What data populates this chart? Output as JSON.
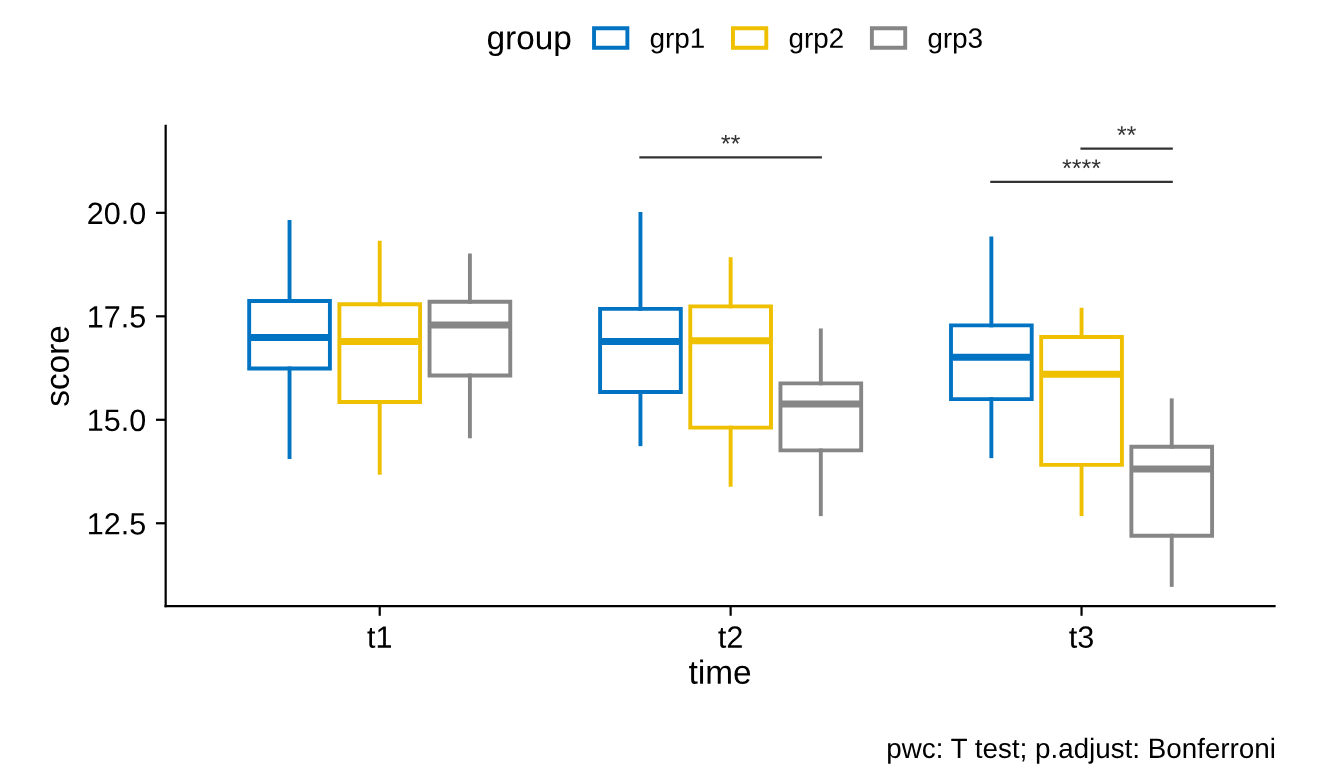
{
  "chart_data": {
    "type": "box",
    "xlabel": "time",
    "ylabel": "score",
    "legend_title": "group",
    "legend": "top",
    "categories": [
      "t1",
      "t2",
      "t3"
    ],
    "ylim": [
      10.5,
      22.1
    ],
    "yticks": [
      {
        "value": 12.5,
        "label": "12.5"
      },
      {
        "value": 15,
        "label": "15.0"
      },
      {
        "value": 17.5,
        "label": "17.5"
      },
      {
        "value": 20,
        "label": "20.0"
      }
    ],
    "grid": false,
    "series": [
      {
        "name": "grp1",
        "color": "#0073c2",
        "boxes": [
          {
            "low": 14.1,
            "q1": 16.24,
            "median": 16.99,
            "q3": 17.87,
            "high": 19.78
          },
          {
            "low": 14.41,
            "q1": 15.67,
            "median": 16.89,
            "q3": 17.68,
            "high": 19.97
          },
          {
            "low": 14.12,
            "q1": 15.5,
            "median": 16.51,
            "q3": 17.28,
            "high": 19.38
          }
        ]
      },
      {
        "name": "grp2",
        "color": "#efc000",
        "boxes": [
          {
            "low": 13.72,
            "q1": 15.43,
            "median": 16.89,
            "q3": 17.79,
            "high": 19.28
          },
          {
            "low": 13.43,
            "q1": 14.81,
            "median": 16.91,
            "q3": 17.74,
            "high": 18.88
          },
          {
            "low": 12.72,
            "q1": 13.91,
            "median": 16.1,
            "q3": 17.0,
            "high": 17.66
          }
        ]
      },
      {
        "name": "grp3",
        "color": "#868686",
        "boxes": [
          {
            "low": 14.6,
            "q1": 16.07,
            "median": 17.29,
            "q3": 17.85,
            "high": 18.97
          },
          {
            "low": 12.72,
            "q1": 14.26,
            "median": 15.38,
            "q3": 15.88,
            "high": 17.16
          },
          {
            "low": 11.01,
            "q1": 12.2,
            "median": 13.81,
            "q3": 14.35,
            "high": 15.47
          }
        ]
      }
    ],
    "annotations": [
      "**",
      "****",
      "**",
      "pwc: T test; p.adjust: Bonferroni"
    ]
  }
}
